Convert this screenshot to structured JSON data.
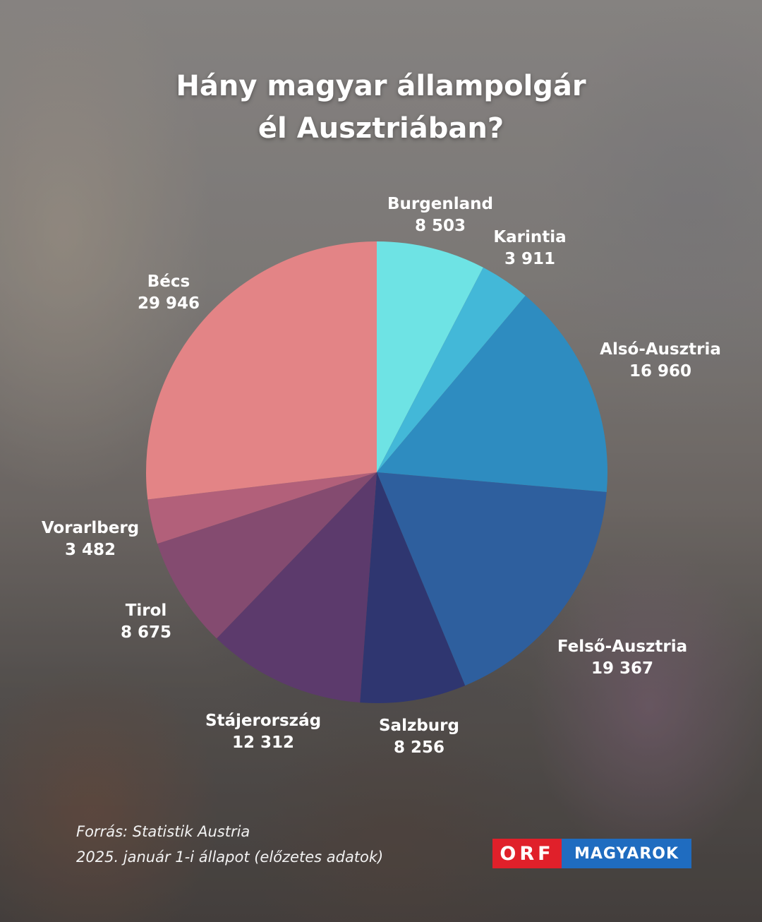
{
  "chart_data": {
    "type": "pie",
    "title_lines": [
      "Hány magyar állampolgár",
      "él Ausztriában?"
    ],
    "start_angle_deg": 0,
    "direction": "clockwise",
    "slices": [
      {
        "label": "Burgenland",
        "value": 8503,
        "value_text": "8 503",
        "color": "#6ee3e4"
      },
      {
        "label": "Karintia",
        "value": 3911,
        "value_text": "3 911",
        "color": "#43b8d8"
      },
      {
        "label": "Alsó-Ausztria",
        "value": 16960,
        "value_text": "16 960",
        "color": "#2e8cc0"
      },
      {
        "label": "Felső-Ausztria",
        "value": 19367,
        "value_text": "19 367",
        "color": "#2e5f9e"
      },
      {
        "label": "Salzburg",
        "value": 8256,
        "value_text": "8 256",
        "color": "#2f3670"
      },
      {
        "label": "Stájerország",
        "value": 12312,
        "value_text": "12 312",
        "color": "#5c3a6c"
      },
      {
        "label": "Tirol",
        "value": 8675,
        "value_text": "8 675",
        "color": "#844b70"
      },
      {
        "label": "Vorarlberg",
        "value": 3482,
        "value_text": "3 482",
        "color": "#b2607a"
      },
      {
        "label": "Bécs",
        "value": 29946,
        "value_text": "29 946",
        "color": "#e38486"
      }
    ]
  },
  "source": {
    "line1": "Forrás: Statistik Austria",
    "line2": "2025. január 1-i állapot (előzetes adatok)"
  },
  "logo": {
    "orf": "ORF",
    "brand": "MAGYAROK",
    "orf_color": "#e0202a",
    "brand_color": "#1f6cc0"
  }
}
